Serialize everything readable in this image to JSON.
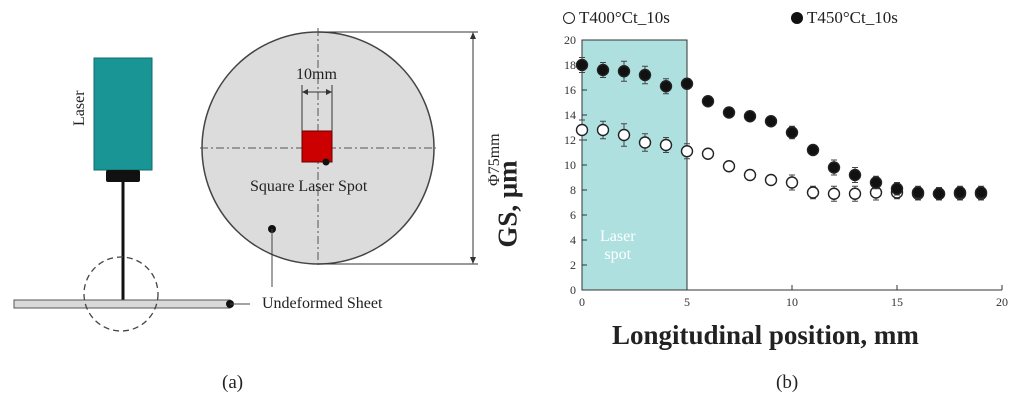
{
  "figure": {
    "panel_a": {
      "caption": "(a)",
      "laser_label": "Laser",
      "spot_width_label": "10mm",
      "diameter_label": "Φ75mm",
      "spot_label": "Square Laser Spot",
      "sheet_label": "Undeformed Sheet",
      "colors": {
        "laser_body": "#1a9595",
        "disc": "#dcdcdc",
        "spot": "#cc0000",
        "sheet": "#d9d9d9"
      }
    },
    "panel_b": {
      "caption": "(b)",
      "region_label_line1": "Laser",
      "region_label_line2": "spot",
      "colors": {
        "region": "#aee0e0",
        "marker": "#111111"
      }
    }
  },
  "chart_data": {
    "type": "scatter",
    "xlabel": "Longitudinal position, mm",
    "ylabel": "GS, μm",
    "xlim": [
      0,
      20
    ],
    "ylim": [
      0,
      20
    ],
    "xticks": [
      0,
      5,
      10,
      15,
      20
    ],
    "yticks": [
      0,
      2,
      4,
      6,
      8,
      10,
      12,
      14,
      16,
      18,
      20
    ],
    "grid": false,
    "legend_position": "top",
    "shaded_region": {
      "x": [
        0,
        5
      ],
      "label": "Laser spot"
    },
    "series": [
      {
        "name": "T400°Ct_10s",
        "marker": "open-circle",
        "x": [
          0,
          1,
          2,
          3,
          4,
          5,
          6,
          7,
          8,
          9,
          10,
          11,
          12,
          13,
          14,
          15,
          16,
          17,
          18,
          19
        ],
        "y": [
          12.8,
          12.8,
          12.4,
          11.8,
          11.6,
          11.1,
          10.9,
          9.9,
          9.2,
          8.8,
          8.6,
          7.8,
          7.7,
          7.7,
          7.8,
          7.8,
          7.7,
          7.7,
          7.7,
          7.7
        ],
        "err": [
          0.8,
          0.7,
          0.9,
          0.7,
          0.6,
          0.6,
          0.3,
          0.4,
          0.3,
          0.3,
          0.6,
          0.5,
          0.6,
          0.6,
          0.6,
          0.5,
          0.5,
          0.5,
          0.5,
          0.5
        ]
      },
      {
        "name": "T450°Ct_10s",
        "marker": "filled-circle",
        "x": [
          0,
          1,
          2,
          3,
          4,
          5,
          6,
          7,
          8,
          9,
          10,
          11,
          12,
          13,
          14,
          15,
          16,
          17,
          18,
          19
        ],
        "y": [
          18.0,
          17.6,
          17.5,
          17.2,
          16.3,
          16.5,
          15.1,
          14.2,
          13.9,
          13.5,
          12.6,
          11.2,
          9.8,
          9.2,
          8.6,
          8.1,
          7.8,
          7.7,
          7.8,
          7.8
        ],
        "err": [
          0.6,
          0.6,
          0.8,
          0.7,
          0.6,
          0.4,
          0.3,
          0.4,
          0.3,
          0.3,
          0.5,
          0.4,
          0.6,
          0.6,
          0.5,
          0.5,
          0.5,
          0.5,
          0.5,
          0.5
        ]
      }
    ]
  }
}
